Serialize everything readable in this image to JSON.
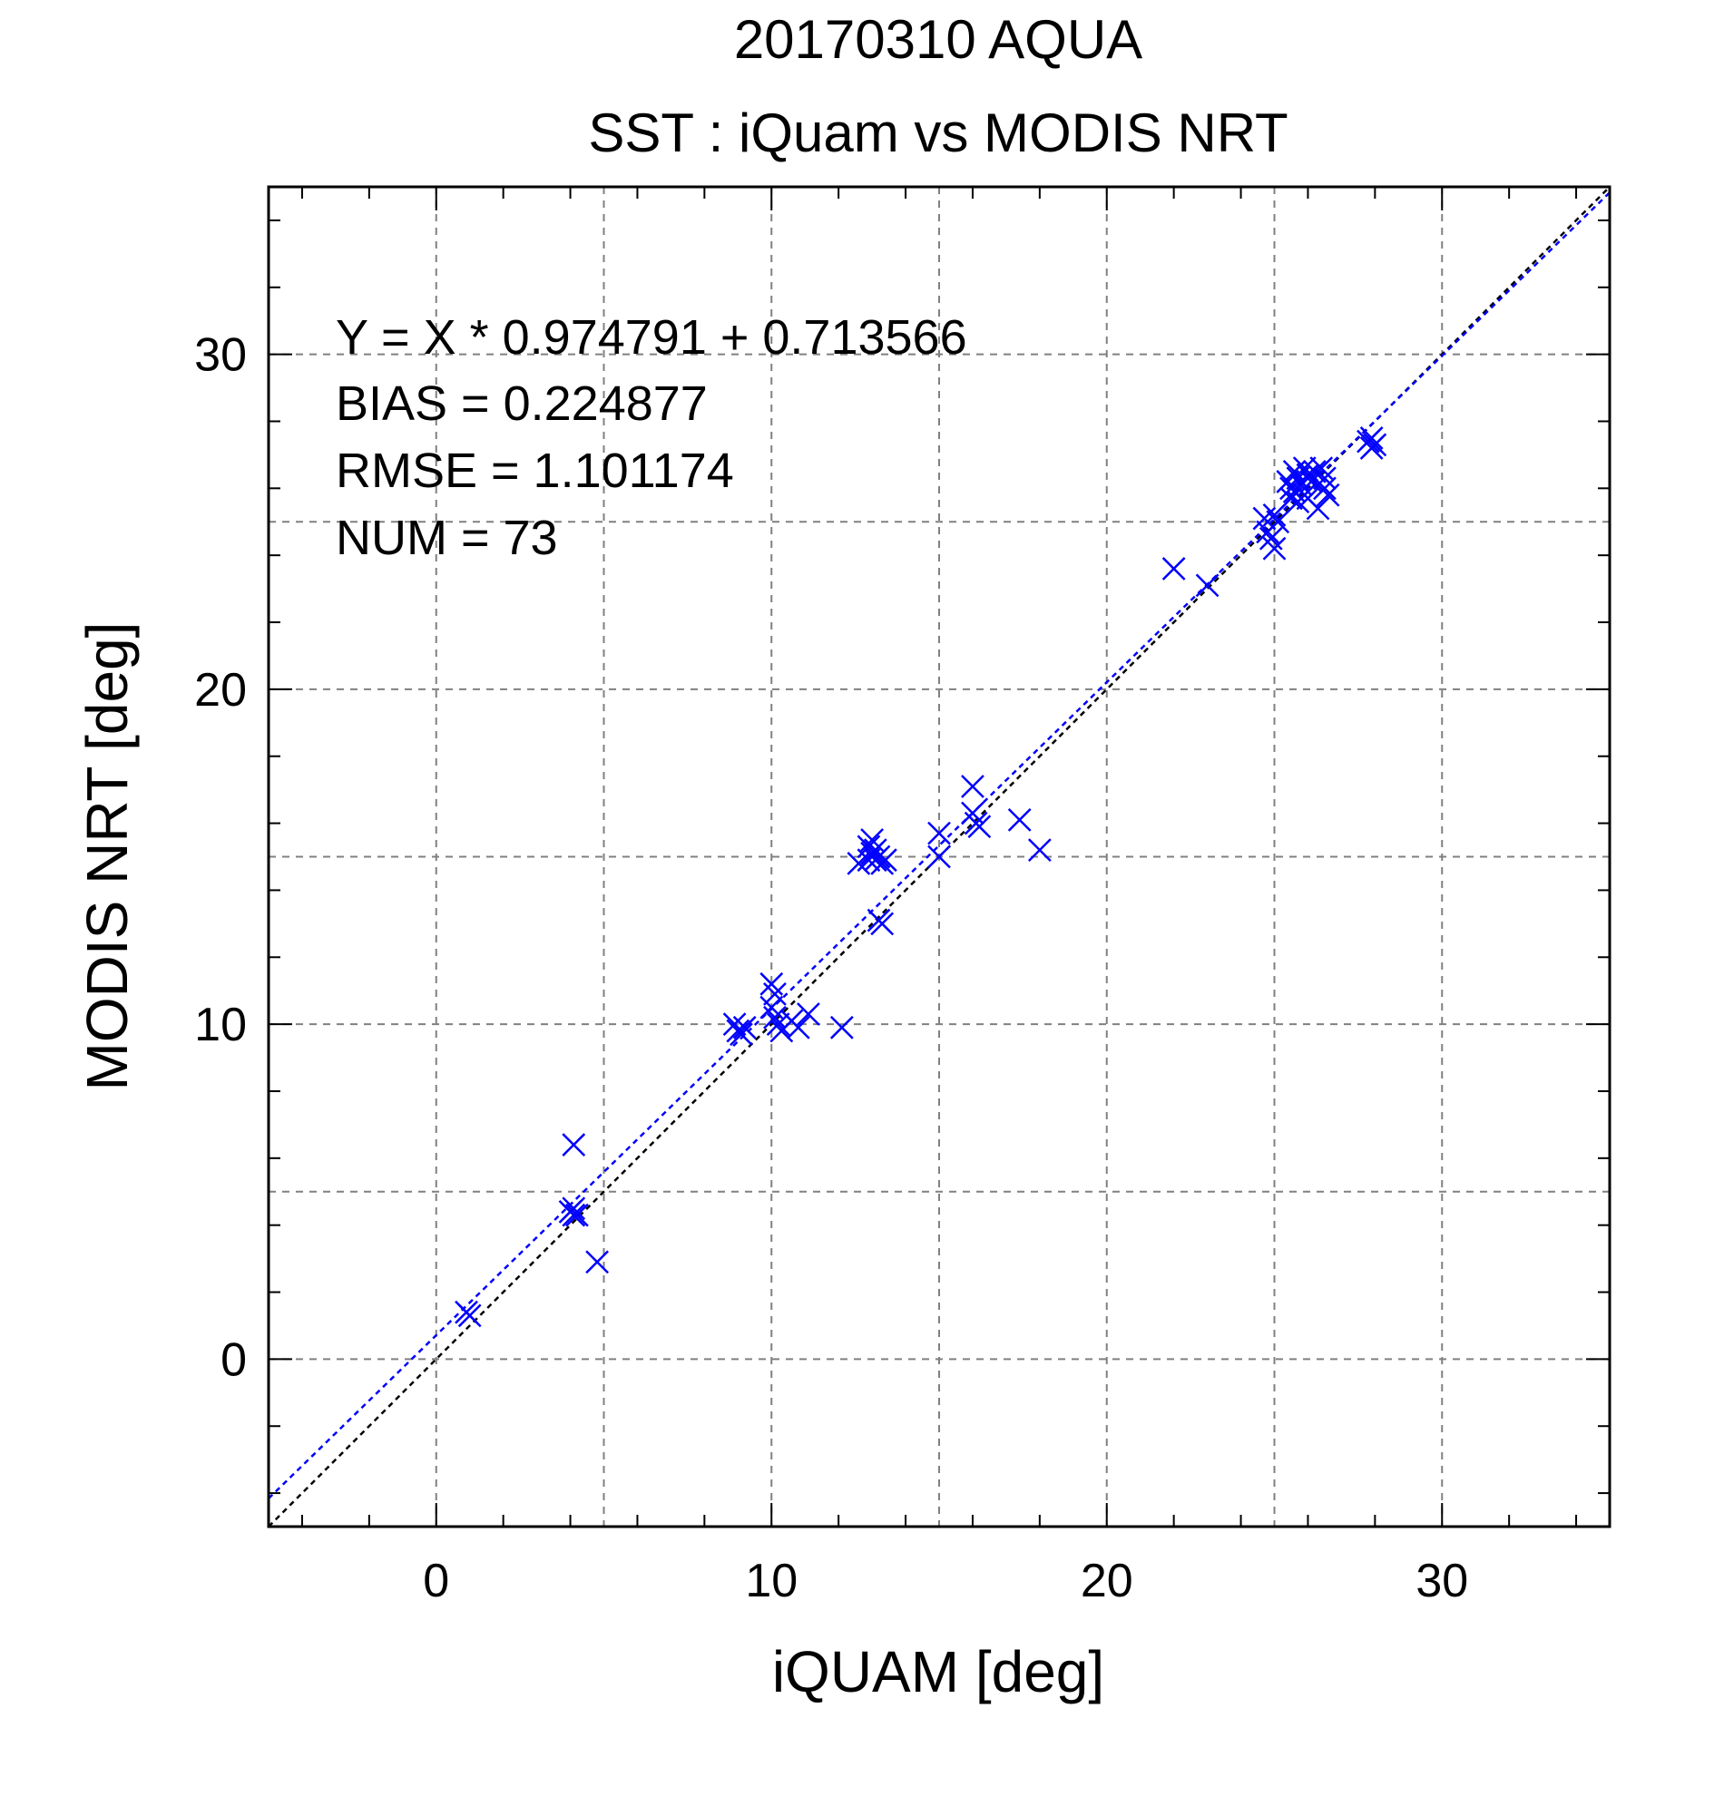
{
  "chart_data": {
    "type": "scatter",
    "title": "20170310 AQUA",
    "subtitle": "SST : iQuam vs MODIS NRT",
    "xlabel": "iQUAM [deg]",
    "ylabel": "MODIS NRT [deg]",
    "xlim": [
      -5,
      35
    ],
    "ylim": [
      -5,
      35
    ],
    "xticks": [
      0,
      10,
      20,
      30
    ],
    "yticks": [
      0,
      10,
      20,
      30
    ],
    "grid": true,
    "annotations": [
      "Y = X * 0.974791 + 0.713566",
      "BIAS = 0.224877",
      "RMSE = 1.101174",
      "NUM = 73"
    ],
    "regression": {
      "slope": 0.974791,
      "intercept": 0.713566,
      "color": "#0000ff"
    },
    "identity_line_color": "#000000",
    "marker_color": "#0000ff",
    "points": [
      [
        1.0,
        1.3
      ],
      [
        0.9,
        1.4
      ],
      [
        4.1,
        4.3
      ],
      [
        4.0,
        4.4
      ],
      [
        4.2,
        4.3
      ],
      [
        4.1,
        4.5
      ],
      [
        4.1,
        6.4
      ],
      [
        4.8,
        2.9
      ],
      [
        8.9,
        10.0
      ],
      [
        9.0,
        9.8
      ],
      [
        9.1,
        9.7
      ],
      [
        9.2,
        9.9
      ],
      [
        10.0,
        11.2
      ],
      [
        10.1,
        10.9
      ],
      [
        10.0,
        10.5
      ],
      [
        10.1,
        10.2
      ],
      [
        10.2,
        10.0
      ],
      [
        10.3,
        9.8
      ],
      [
        10.6,
        10.1
      ],
      [
        10.8,
        9.9
      ],
      [
        11.1,
        10.3
      ],
      [
        12.1,
        9.9
      ],
      [
        12.6,
        14.8
      ],
      [
        12.9,
        14.9
      ],
      [
        12.9,
        15.3
      ],
      [
        13.0,
        15.5
      ],
      [
        13.0,
        15.1
      ],
      [
        13.1,
        15.2
      ],
      [
        13.1,
        14.9
      ],
      [
        13.2,
        15.0
      ],
      [
        13.3,
        14.8
      ],
      [
        13.4,
        14.9
      ],
      [
        13.2,
        13.1
      ],
      [
        13.3,
        13.0
      ],
      [
        15.0,
        15.7
      ],
      [
        15.0,
        15.0
      ],
      [
        16.0,
        17.1
      ],
      [
        16.0,
        16.3
      ],
      [
        16.1,
        16.0
      ],
      [
        16.2,
        15.9
      ],
      [
        17.4,
        16.1
      ],
      [
        18.0,
        15.2
      ],
      [
        22.0,
        23.6
      ],
      [
        23.0,
        23.1
      ],
      [
        24.7,
        25.1
      ],
      [
        24.8,
        24.7
      ],
      [
        24.9,
        24.5
      ],
      [
        25.0,
        24.2
      ],
      [
        25.1,
        25.0
      ],
      [
        25.0,
        25.2
      ],
      [
        25.4,
        26.2
      ],
      [
        25.5,
        26.0
      ],
      [
        25.5,
        25.7
      ],
      [
        25.6,
        26.5
      ],
      [
        25.6,
        25.9
      ],
      [
        25.7,
        26.3
      ],
      [
        25.7,
        25.6
      ],
      [
        25.8,
        26.1
      ],
      [
        25.9,
        26.6
      ],
      [
        25.9,
        25.8
      ],
      [
        26.0,
        26.4
      ],
      [
        26.1,
        26.2
      ],
      [
        26.2,
        26.5
      ],
      [
        26.3,
        25.4
      ],
      [
        26.4,
        26.6
      ],
      [
        26.5,
        26.0
      ],
      [
        26.5,
        26.3
      ],
      [
        26.6,
        25.8
      ],
      [
        26.0,
        25.7
      ],
      [
        27.8,
        27.4
      ],
      [
        27.9,
        27.2
      ],
      [
        28.0,
        27.3
      ],
      [
        27.9,
        27.5
      ]
    ]
  }
}
